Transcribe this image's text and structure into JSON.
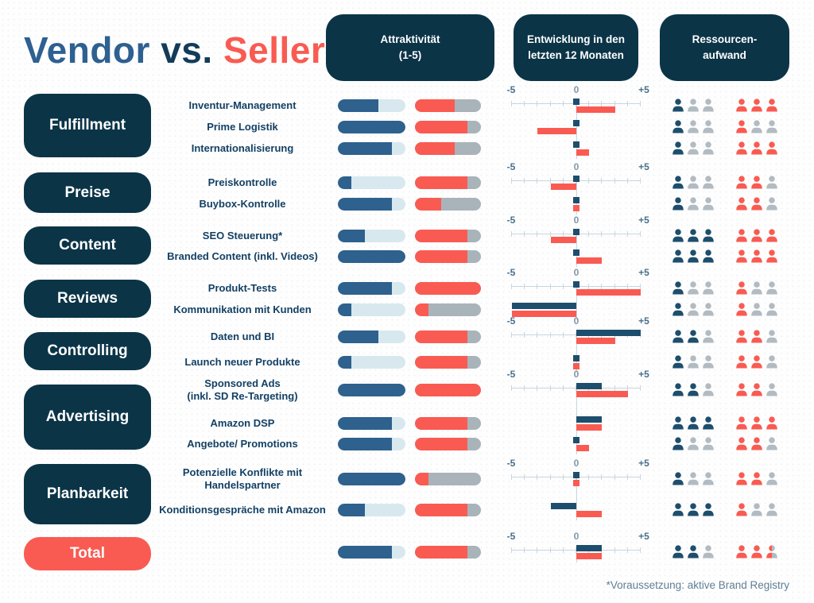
{
  "title": {
    "vendor": "Vendor",
    "vs": " vs. ",
    "seller": "Seller"
  },
  "column_headers": [
    {
      "id": "attractiveness",
      "label": "Attraktivität\n(1-5)"
    },
    {
      "id": "development",
      "label": "Entwicklung in den\nletzten 12 Monaten"
    },
    {
      "id": "resources",
      "label": "Ressourcen-\naufwand"
    }
  ],
  "axis": {
    "min_label": "-5",
    "zero_label": "0",
    "max_label": "+5",
    "min": -5,
    "max": 5
  },
  "footnote": "*Voraussetzung: aktive Brand Registry",
  "colors": {
    "pill_navy": "#0B3447",
    "total_pill": "#F95B52",
    "vendor_bar": "#2E618D",
    "vendor_track": "#D8E8EF",
    "vendor_dev": "#1E4E6D",
    "vendor_icon": "#1E4E6D",
    "seller_bar": "#F95B52",
    "seller_track": "#A9B3BA",
    "seller_dev": "#F95B52",
    "seller_icon": "#F95B52",
    "resource_empty": "#B2BBC2",
    "axis": "#C9D6DD",
    "row_label": "#134064",
    "footnote": "#607E95"
  },
  "chart_data": {
    "type": "table",
    "title": "Vendor vs. Seller",
    "columns": [
      "Attraktivität (1-5)",
      "Entwicklung in den letzten 12 Monaten",
      "Ressourcen-aufwand"
    ],
    "scales": {
      "attractiveness": [
        0,
        5
      ],
      "development": [
        -5,
        5
      ],
      "resources": [
        0,
        3
      ]
    },
    "series_names": [
      "Vendor",
      "Seller"
    ],
    "groups": [
      {
        "category": "Fulfillment",
        "accent": false,
        "rows": [
          {
            "label": "Inventur-Management",
            "attractiveness": {
              "vendor": 3,
              "seller": 3
            },
            "development": {
              "vendor": 0,
              "seller": 3
            },
            "resources": {
              "vendor": 1,
              "seller": 3
            }
          },
          {
            "label": "Prime Logistik",
            "attractiveness": {
              "vendor": 5,
              "seller": 4
            },
            "development": {
              "vendor": 0,
              "seller": -3
            },
            "resources": {
              "vendor": 1,
              "seller": 1
            }
          },
          {
            "label": "Internationalisierung",
            "attractiveness": {
              "vendor": 4,
              "seller": 3
            },
            "development": {
              "vendor": 0,
              "seller": 1
            },
            "resources": {
              "vendor": 1,
              "seller": 3
            }
          }
        ]
      },
      {
        "category": "Preise",
        "accent": false,
        "rows": [
          {
            "label": "Preiskontrolle",
            "attractiveness": {
              "vendor": 1,
              "seller": 4
            },
            "development": {
              "vendor": 0,
              "seller": -2
            },
            "resources": {
              "vendor": 1,
              "seller": 2
            }
          },
          {
            "label": "Buybox-Kontrolle",
            "attractiveness": {
              "vendor": 4,
              "seller": 2
            },
            "development": {
              "vendor": 0,
              "seller": 0
            },
            "resources": {
              "vendor": 1,
              "seller": 2
            }
          }
        ]
      },
      {
        "category": "Content",
        "accent": false,
        "rows": [
          {
            "label": "SEO Steuerung*",
            "attractiveness": {
              "vendor": 2,
              "seller": 4
            },
            "development": {
              "vendor": 0,
              "seller": -2
            },
            "resources": {
              "vendor": 3,
              "seller": 3
            }
          },
          {
            "label": "Branded Content (inkl. Videos)",
            "attractiveness": {
              "vendor": 5,
              "seller": 4
            },
            "development": {
              "vendor": 0,
              "seller": 2
            },
            "resources": {
              "vendor": 3,
              "seller": 3
            }
          }
        ]
      },
      {
        "category": "Reviews",
        "accent": false,
        "rows": [
          {
            "label": "Produkt-Tests",
            "attractiveness": {
              "vendor": 4,
              "seller": 5
            },
            "development": {
              "vendor": 0,
              "seller": 5
            },
            "resources": {
              "vendor": 1,
              "seller": 1
            }
          },
          {
            "label": "Kommunikation mit Kunden",
            "attractiveness": {
              "vendor": 1,
              "seller": 1
            },
            "development": {
              "vendor": -5,
              "seller": -5
            },
            "resources": {
              "vendor": 1,
              "seller": 1
            }
          }
        ]
      },
      {
        "category": "Controlling",
        "accent": false,
        "rows": [
          {
            "label": "Daten und BI",
            "attractiveness": {
              "vendor": 3,
              "seller": 4
            },
            "development": {
              "vendor": 5,
              "seller": 3
            },
            "resources": {
              "vendor": 2,
              "seller": 2
            }
          },
          {
            "label": "Launch neuer Produkte",
            "attractiveness": {
              "vendor": 1,
              "seller": 4
            },
            "development": {
              "vendor": 0,
              "seller": 0
            },
            "resources": {
              "vendor": 1,
              "seller": 2
            }
          }
        ]
      },
      {
        "category": "Advertising",
        "accent": false,
        "rows": [
          {
            "label": "Sponsored Ads\n(inkl. SD Re-Targeting)",
            "attractiveness": {
              "vendor": 5,
              "seller": 5
            },
            "development": {
              "vendor": 2,
              "seller": 4
            },
            "resources": {
              "vendor": 2,
              "seller": 2
            }
          },
          {
            "label": "Amazon DSP",
            "attractiveness": {
              "vendor": 4,
              "seller": 4
            },
            "development": {
              "vendor": 2,
              "seller": 2
            },
            "resources": {
              "vendor": 3,
              "seller": 3
            }
          },
          {
            "label": "Angebote/ Promotions",
            "attractiveness": {
              "vendor": 4,
              "seller": 4
            },
            "development": {
              "vendor": 0,
              "seller": 1
            },
            "resources": {
              "vendor": 1,
              "seller": 2
            }
          }
        ]
      },
      {
        "category": "Planbarkeit",
        "accent": false,
        "rows": [
          {
            "label": "Potenzielle Konflikte mit\nHandelspartner",
            "attractiveness": {
              "vendor": 5,
              "seller": 1
            },
            "development": {
              "vendor": 0,
              "seller": 0
            },
            "resources": {
              "vendor": 1,
              "seller": 2
            }
          },
          {
            "label": "Konditionsgespräche mit Amazon",
            "attractiveness": {
              "vendor": 2,
              "seller": 4
            },
            "development": {
              "vendor": -2,
              "seller": 2
            },
            "resources": {
              "vendor": 3,
              "seller": 1
            }
          }
        ]
      },
      {
        "category": "Total",
        "accent": true,
        "rows": [
          {
            "label": "",
            "attractiveness": {
              "vendor": 4,
              "seller": 4
            },
            "development": {
              "vendor": 2,
              "seller": 2
            },
            "resources": {
              "vendor": 2,
              "seller": 2.5
            }
          }
        ]
      }
    ]
  }
}
